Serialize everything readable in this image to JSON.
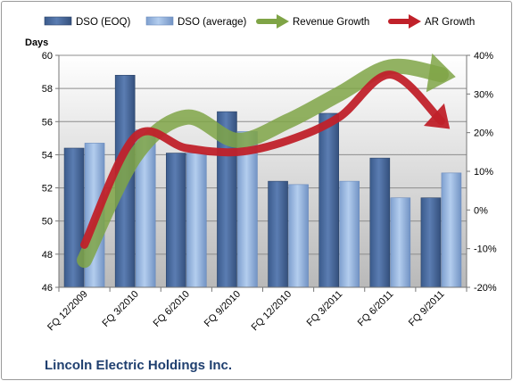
{
  "chart_data": {
    "type": "bar",
    "title": "Lincoln Electric Holdings Inc.",
    "ylabel_left": "Days",
    "ylim_left": [
      46,
      60
    ],
    "ylim_right": [
      -20,
      40
    ],
    "left_ticks": [
      "46",
      "48",
      "50",
      "52",
      "54",
      "56",
      "58",
      "60"
    ],
    "right_ticks": [
      "-20%",
      "-10%",
      "0%",
      "10%",
      "20%",
      "30%",
      "40%"
    ],
    "categories": [
      "FQ 12/2009",
      "FQ 3/2010",
      "FQ 6/2010",
      "FQ 9/2010",
      "FQ 12/2010",
      "FQ 3/2011",
      "FQ 6/2011",
      "FQ 9/2011"
    ],
    "series": [
      {
        "name": "DSO (EOQ)",
        "type": "bar",
        "axis": "left",
        "color": "#4a6a9c",
        "values": [
          54.4,
          58.8,
          54.1,
          56.6,
          52.4,
          56.5,
          53.8,
          51.4
        ]
      },
      {
        "name": "DSO (average)",
        "type": "bar",
        "axis": "left",
        "color": "#93b3dd",
        "values": [
          54.7,
          55.5,
          54.1,
          55.4,
          52.2,
          52.4,
          51.4,
          52.9
        ]
      },
      {
        "name": "Revenue Growth",
        "type": "line",
        "axis": "right",
        "color": "#7fa446",
        "values": [
          -13,
          14,
          24,
          18,
          23,
          30,
          37,
          35
        ]
      },
      {
        "name": "AR Growth",
        "type": "line",
        "axis": "right",
        "color": "#c0212a",
        "values": [
          -9,
          19,
          16,
          15,
          18,
          24,
          35,
          23
        ]
      }
    ],
    "legend_position": "top",
    "grid": true
  }
}
